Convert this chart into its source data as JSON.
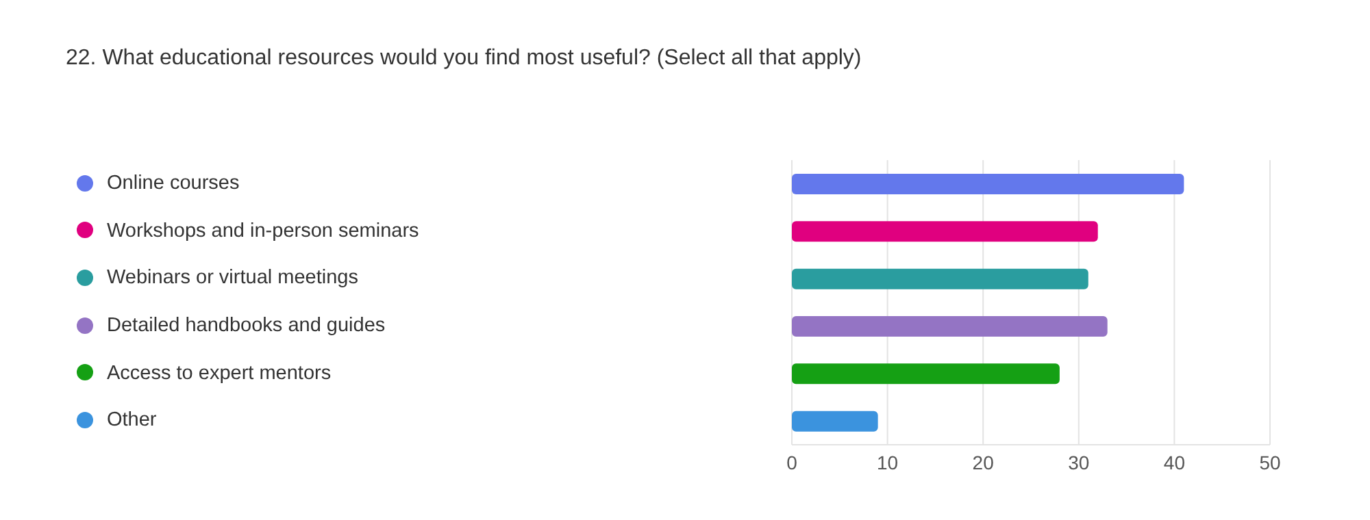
{
  "chart_data": {
    "type": "bar",
    "orientation": "horizontal",
    "stacked": true,
    "title": "22. What educational resources would you find most useful? (Select all that apply)",
    "categories": [
      null,
      null,
      null,
      null,
      null,
      null
    ],
    "series": [
      {
        "name": "Online courses",
        "color": "#6378ec",
        "values": [
          41,
          null,
          null,
          null,
          null,
          null
        ]
      },
      {
        "name": "Workshops and in-person seminars",
        "color": "#e0007f",
        "values": [
          null,
          32,
          null,
          null,
          null,
          null
        ]
      },
      {
        "name": "Webinars or virtual meetings",
        "color": "#2a9d9f",
        "values": [
          null,
          null,
          31,
          null,
          null,
          null
        ]
      },
      {
        "name": "Detailed handbooks and guides",
        "color": "#9474c4",
        "values": [
          null,
          null,
          null,
          33,
          null,
          null
        ]
      },
      {
        "name": "Access to expert mentors",
        "color": "#15a014",
        "values": [
          null,
          null,
          null,
          null,
          28,
          null
        ]
      },
      {
        "name": "Other",
        "color": "#3b93de",
        "values": [
          null,
          null,
          null,
          null,
          null,
          9
        ]
      }
    ],
    "xlim": [
      0,
      50
    ],
    "xticks": [
      0,
      10,
      20,
      30,
      40,
      50
    ],
    "grid": "x",
    "legend": "left",
    "tick_labels": "x"
  }
}
